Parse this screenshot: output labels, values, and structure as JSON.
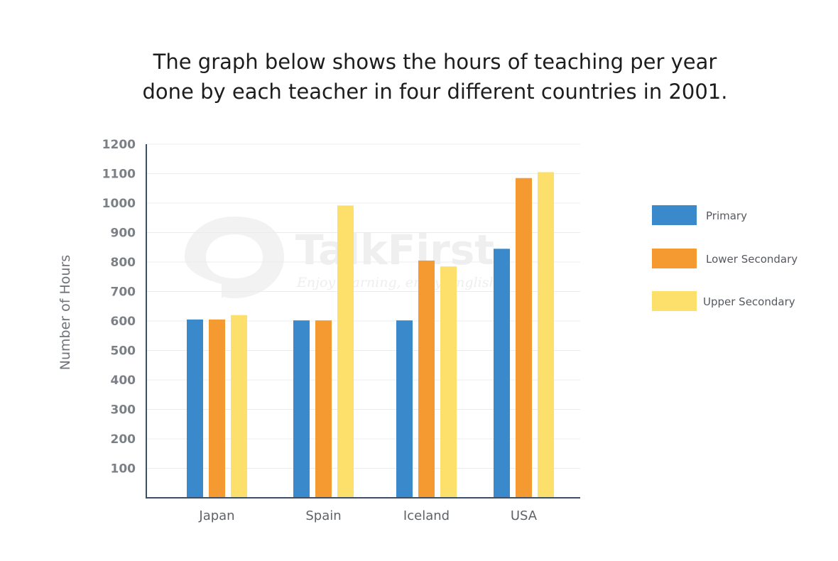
{
  "chart_data": {
    "type": "bar",
    "title_lines": [
      "The graph below shows the hours of teaching per year",
      "done by each teacher in four different countries in 2001."
    ],
    "categories": [
      "Japan",
      "Spain",
      "Iceland",
      "USA"
    ],
    "series": [
      {
        "name": "Primary",
        "color": "#3a8acb",
        "values": [
          605,
          602,
          602,
          845
        ]
      },
      {
        "name": "Lower Secondary",
        "color": "#f59a30",
        "values": [
          605,
          602,
          805,
          1085
        ]
      },
      {
        "name": "Upper Secondary",
        "color": "#fddf6b",
        "values": [
          620,
          992,
          785,
          1105
        ]
      }
    ],
    "ylabel": "Number of Hours",
    "xlabel": "",
    "ylim": [
      0,
      1200
    ],
    "yticks": [
      100,
      200,
      300,
      400,
      500,
      600,
      700,
      800,
      900,
      1000,
      1100,
      1200
    ],
    "grid": true,
    "legend_position": "right",
    "watermark": {
      "brand": "TalkFirst",
      "tagline": "Enjoy learning, enjoy English"
    }
  }
}
